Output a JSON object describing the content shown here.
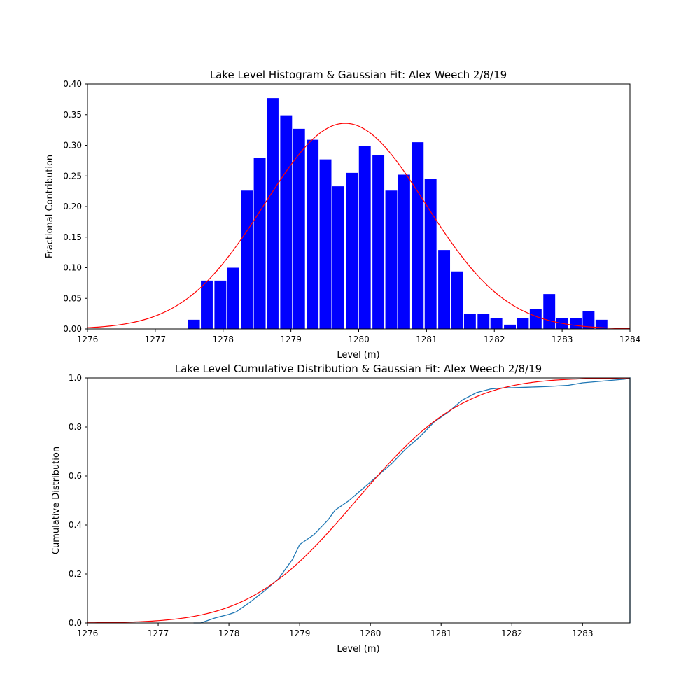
{
  "chart_data": [
    {
      "type": "bar",
      "title": "Lake Level Histogram & Gaussian Fit: Alex Weech 2/8/19",
      "xlabel": "Level (m)",
      "ylabel": "Fractional Contribution",
      "xlim": [
        1276,
        1284
      ],
      "ylim": [
        0,
        0.4
      ],
      "xticks": [
        "1276",
        "1277",
        "1278",
        "1279",
        "1280",
        "1281",
        "1282",
        "1283",
        "1284"
      ],
      "yticks": [
        "0.00",
        "0.05",
        "0.10",
        "0.15",
        "0.20",
        "0.25",
        "0.30",
        "0.35",
        "0.40"
      ],
      "grid": false,
      "bar_color": "#0000ff",
      "fit_color": "#ff0000",
      "bin_width": 0.194,
      "bins": [
        {
          "x": 1277.57,
          "value": 0.015
        },
        {
          "x": 1277.76,
          "value": 0.079
        },
        {
          "x": 1277.96,
          "value": 0.079
        },
        {
          "x": 1278.15,
          "value": 0.1
        },
        {
          "x": 1278.35,
          "value": 0.226
        },
        {
          "x": 1278.54,
          "value": 0.28
        },
        {
          "x": 1278.73,
          "value": 0.377
        },
        {
          "x": 1278.93,
          "value": 0.349
        },
        {
          "x": 1279.12,
          "value": 0.327
        },
        {
          "x": 1279.32,
          "value": 0.309
        },
        {
          "x": 1279.51,
          "value": 0.277
        },
        {
          "x": 1279.7,
          "value": 0.233
        },
        {
          "x": 1279.9,
          "value": 0.255
        },
        {
          "x": 1280.09,
          "value": 0.299
        },
        {
          "x": 1280.29,
          "value": 0.284
        },
        {
          "x": 1280.48,
          "value": 0.226
        },
        {
          "x": 1280.67,
          "value": 0.252
        },
        {
          "x": 1280.87,
          "value": 0.305
        },
        {
          "x": 1281.06,
          "value": 0.245
        },
        {
          "x": 1281.26,
          "value": 0.129
        },
        {
          "x": 1281.45,
          "value": 0.094
        },
        {
          "x": 1281.64,
          "value": 0.025
        },
        {
          "x": 1281.84,
          "value": 0.025
        },
        {
          "x": 1282.03,
          "value": 0.018
        },
        {
          "x": 1282.23,
          "value": 0.007
        },
        {
          "x": 1282.42,
          "value": 0.018
        },
        {
          "x": 1282.61,
          "value": 0.032
        },
        {
          "x": 1282.81,
          "value": 0.057
        },
        {
          "x": 1283.0,
          "value": 0.018
        },
        {
          "x": 1283.2,
          "value": 0.018
        },
        {
          "x": 1283.39,
          "value": 0.029
        },
        {
          "x": 1283.58,
          "value": 0.015
        }
      ],
      "gaussian_fit": {
        "mean": 1279.8,
        "std": 1.19,
        "peak": 0.336
      }
    },
    {
      "type": "line",
      "title": "Lake Level Cumulative Distribution & Gaussian Fit: Alex Weech 2/8/19",
      "xlabel": "Level (m)",
      "ylabel": "Cumulative Distribution",
      "xlim": [
        1276,
        1283.67
      ],
      "ylim": [
        0,
        1.0
      ],
      "xticks": [
        "1276",
        "1277",
        "1278",
        "1279",
        "1280",
        "1281",
        "1282",
        "1283"
      ],
      "yticks": [
        "0.0",
        "0.2",
        "0.4",
        "0.6",
        "0.8",
        "1.0"
      ],
      "grid": false,
      "series": [
        {
          "color": "#1f77b4",
          "x": [
            1277.5,
            1277.6,
            1277.8,
            1278.0,
            1278.1,
            1278.3,
            1278.5,
            1278.7,
            1278.8,
            1278.9,
            1279.0,
            1279.2,
            1279.4,
            1279.5,
            1279.7,
            1279.9,
            1280.1,
            1280.3,
            1280.5,
            1280.7,
            1280.9,
            1281.1,
            1281.3,
            1281.5,
            1281.7,
            1281.9,
            1282.0,
            1282.2,
            1282.5,
            1282.8,
            1283.0,
            1283.2,
            1283.4,
            1283.6,
            1283.67
          ],
          "y": [
            0.0,
            0.0,
            0.02,
            0.035,
            0.045,
            0.085,
            0.13,
            0.18,
            0.22,
            0.26,
            0.32,
            0.36,
            0.42,
            0.46,
            0.5,
            0.55,
            0.6,
            0.65,
            0.71,
            0.76,
            0.82,
            0.86,
            0.91,
            0.94,
            0.955,
            0.96,
            0.96,
            0.962,
            0.965,
            0.97,
            0.98,
            0.985,
            0.99,
            0.995,
            1.0
          ]
        },
        {
          "color": "#ff0000",
          "gaussian_cdf": {
            "mean": 1279.8,
            "std": 1.19
          }
        }
      ]
    }
  ]
}
